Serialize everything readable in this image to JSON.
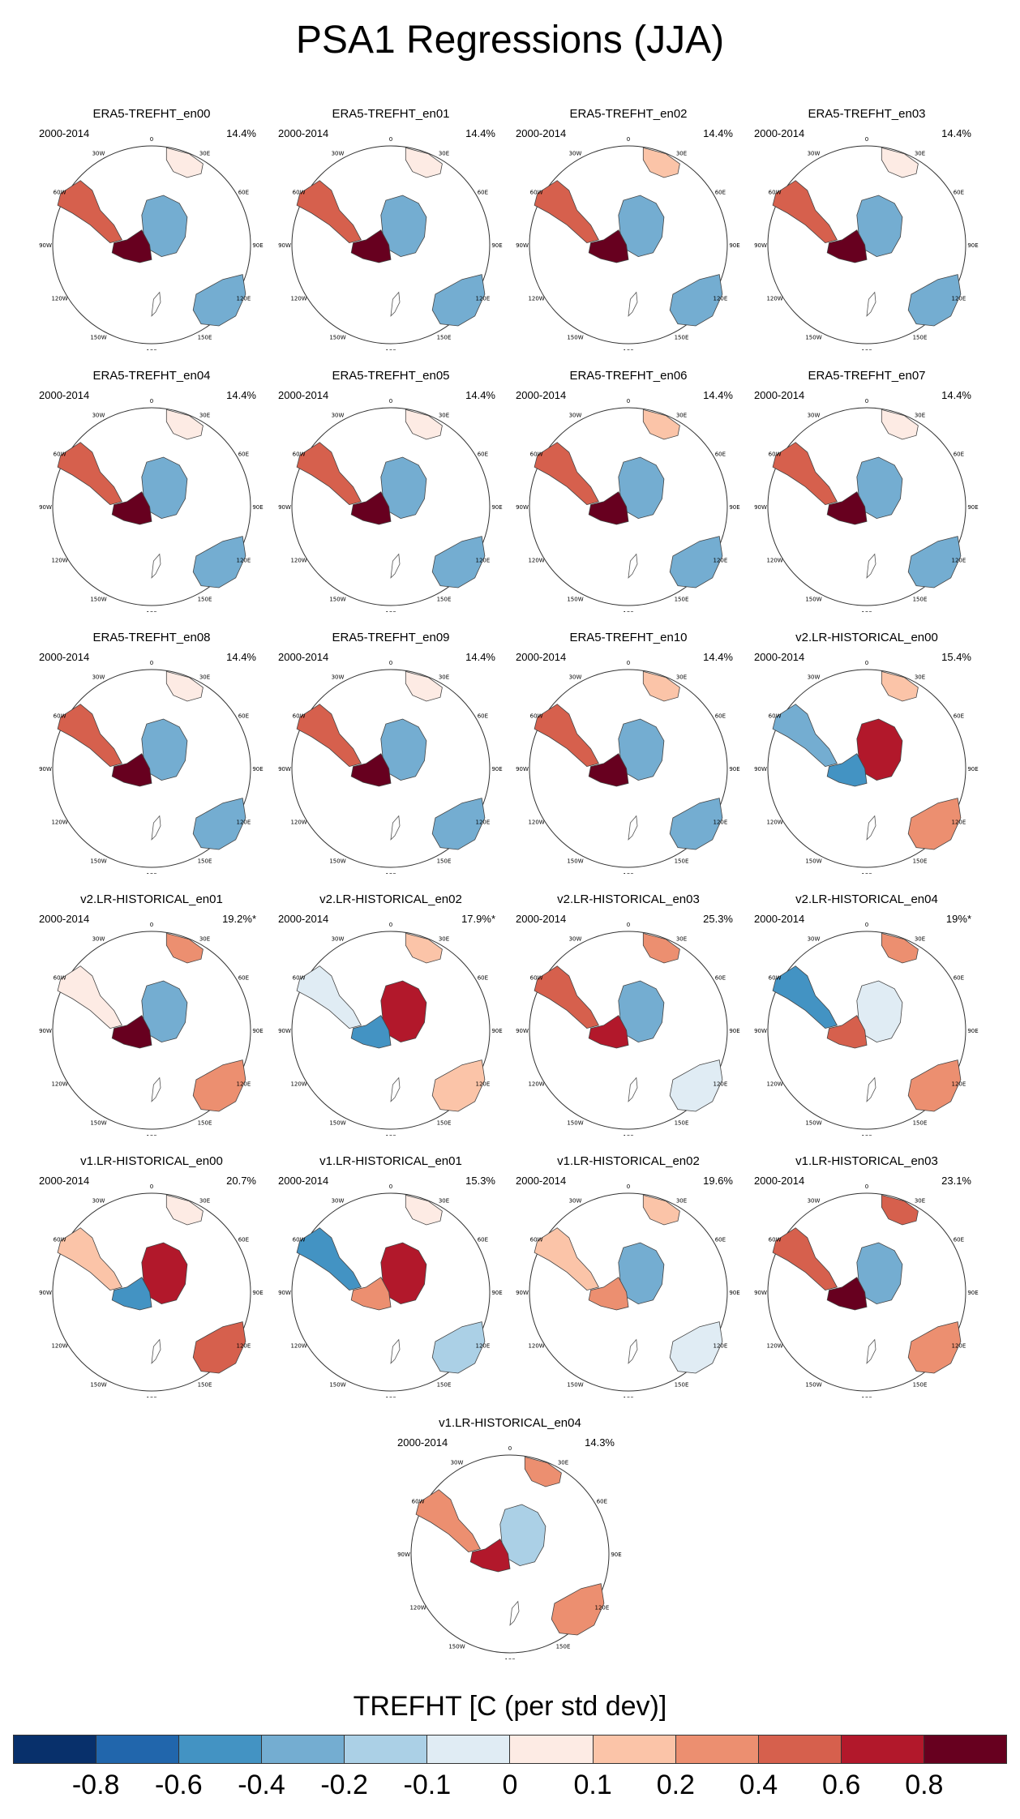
{
  "title": "PSA1 Regressions (JJA)",
  "period_label": "2000-2014",
  "lon_labels": [
    "0",
    "30E",
    "60E",
    "90E",
    "120E",
    "150E",
    "180",
    "150W",
    "120W",
    "90W",
    "60W",
    "30W"
  ],
  "colorbar": {
    "title": "TREFHT [C (per std dev)]",
    "colors": [
      "#08306b",
      "#2166ac",
      "#4393c3",
      "#74add1",
      "#abd0e6",
      "#e0ecf4",
      "#fdebe4",
      "#fbc4a8",
      "#ec8f70",
      "#d6604d",
      "#b2182b",
      "#67001f"
    ],
    "labels": [
      "-0.8",
      "-0.6",
      "-0.4",
      "-0.2",
      "-0.1",
      "0",
      "0.1",
      "0.2",
      "0.4",
      "0.6",
      "0.8"
    ]
  },
  "chart_data": {
    "type": "heatmap",
    "variable": "TREFHT",
    "units": "C (per std dev)",
    "season": "JJA",
    "panels": [
      {
        "title": "ERA5-TREFHT_en00",
        "period": "2000-2014",
        "pct": "14.4%",
        "pattern": {
          "peninsula": 0.55,
          "westAnt": 0.9,
          "eastAnt": -0.35,
          "australia": -0.3,
          "africa": 0.05
        }
      },
      {
        "title": "ERA5-TREFHT_en01",
        "period": "2000-2014",
        "pct": "14.4%",
        "pattern": {
          "peninsula": 0.45,
          "westAnt": 0.9,
          "eastAnt": -0.3,
          "australia": -0.25,
          "africa": 0.05
        }
      },
      {
        "title": "ERA5-TREFHT_en02",
        "period": "2000-2014",
        "pct": "14.4%",
        "pattern": {
          "peninsula": 0.5,
          "westAnt": 0.85,
          "eastAnt": -0.35,
          "australia": -0.3,
          "africa": 0.1
        }
      },
      {
        "title": "ERA5-TREFHT_en03",
        "period": "2000-2014",
        "pct": "14.4%",
        "pattern": {
          "peninsula": 0.45,
          "westAnt": 0.85,
          "eastAnt": -0.35,
          "australia": -0.3,
          "africa": 0.05
        }
      },
      {
        "title": "ERA5-TREFHT_en04",
        "period": "2000-2014",
        "pct": "14.4%",
        "pattern": {
          "peninsula": 0.5,
          "westAnt": 0.9,
          "eastAnt": -0.3,
          "australia": -0.3,
          "africa": 0.05
        }
      },
      {
        "title": "ERA5-TREFHT_en05",
        "period": "2000-2014",
        "pct": "14.4%",
        "pattern": {
          "peninsula": 0.45,
          "westAnt": 0.85,
          "eastAnt": -0.3,
          "australia": -0.3,
          "africa": 0.05
        }
      },
      {
        "title": "ERA5-TREFHT_en06",
        "period": "2000-2014",
        "pct": "14.4%",
        "pattern": {
          "peninsula": 0.5,
          "westAnt": 0.85,
          "eastAnt": -0.35,
          "australia": -0.3,
          "africa": 0.1
        }
      },
      {
        "title": "ERA5-TREFHT_en07",
        "period": "2000-2014",
        "pct": "14.4%",
        "pattern": {
          "peninsula": 0.45,
          "westAnt": 0.85,
          "eastAnt": -0.35,
          "australia": -0.3,
          "africa": 0.05
        }
      },
      {
        "title": "ERA5-TREFHT_en08",
        "period": "2000-2014",
        "pct": "14.4%",
        "pattern": {
          "peninsula": 0.5,
          "westAnt": 0.9,
          "eastAnt": -0.35,
          "australia": -0.3,
          "africa": 0.05
        }
      },
      {
        "title": "ERA5-TREFHT_en09",
        "period": "2000-2014",
        "pct": "14.4%",
        "pattern": {
          "peninsula": 0.45,
          "westAnt": 0.85,
          "eastAnt": -0.3,
          "australia": -0.3,
          "africa": 0.05
        }
      },
      {
        "title": "ERA5-TREFHT_en10",
        "period": "2000-2014",
        "pct": "14.4%",
        "pattern": {
          "peninsula": 0.5,
          "westAnt": 0.85,
          "eastAnt": -0.35,
          "australia": -0.3,
          "africa": 0.1
        }
      },
      {
        "title": "v2.LR-HISTORICAL_en00",
        "period": "2000-2014",
        "pct": "15.4%",
        "pattern": {
          "peninsula": -0.3,
          "westAnt": -0.6,
          "eastAnt": 0.7,
          "australia": 0.2,
          "africa": 0.1
        }
      },
      {
        "title": "v2.LR-HISTORICAL_en01",
        "period": "2000-2014",
        "pct": "19.2%*",
        "pattern": {
          "peninsula": 0.05,
          "westAnt": 0.85,
          "eastAnt": -0.35,
          "australia": 0.3,
          "africa": 0.2
        }
      },
      {
        "title": "v2.LR-HISTORICAL_en02",
        "period": "2000-2014",
        "pct": "17.9%*",
        "pattern": {
          "peninsula": -0.1,
          "westAnt": -0.6,
          "eastAnt": 0.7,
          "australia": 0.15,
          "africa": 0.15
        }
      },
      {
        "title": "v2.LR-HISTORICAL_en03",
        "period": "2000-2014",
        "pct": "25.3%",
        "pattern": {
          "peninsula": 0.55,
          "westAnt": 0.6,
          "eastAnt": -0.3,
          "australia": -0.05,
          "africa": 0.3
        }
      },
      {
        "title": "v2.LR-HISTORICAL_en04",
        "period": "2000-2014",
        "pct": "19%*",
        "pattern": {
          "peninsula": -0.5,
          "westAnt": 0.5,
          "eastAnt": -0.1,
          "australia": 0.2,
          "africa": 0.3
        }
      },
      {
        "title": "v1.LR-HISTORICAL_en00",
        "period": "2000-2014",
        "pct": "20.7%",
        "pattern": {
          "peninsula": 0.15,
          "westAnt": -0.6,
          "eastAnt": 0.7,
          "australia": 0.45,
          "africa": 0.05
        }
      },
      {
        "title": "v1.LR-HISTORICAL_en01",
        "period": "2000-2014",
        "pct": "15.3%",
        "pattern": {
          "peninsula": -0.55,
          "westAnt": 0.3,
          "eastAnt": 0.7,
          "australia": -0.2,
          "africa": 0.05
        }
      },
      {
        "title": "v1.LR-HISTORICAL_en02",
        "period": "2000-2014",
        "pct": "19.6%",
        "pattern": {
          "peninsula": 0.15,
          "westAnt": 0.35,
          "eastAnt": -0.25,
          "australia": -0.05,
          "africa": 0.1
        }
      },
      {
        "title": "v1.LR-HISTORICAL_en03",
        "period": "2000-2014",
        "pct": "23.1%",
        "pattern": {
          "peninsula": 0.4,
          "westAnt": 0.85,
          "eastAnt": -0.35,
          "australia": 0.2,
          "africa": 0.4
        }
      },
      {
        "title": "v1.LR-HISTORICAL_en04",
        "period": "2000-2014",
        "pct": "14.3%",
        "pattern": {
          "peninsula": 0.25,
          "westAnt": 0.7,
          "eastAnt": -0.15,
          "australia": 0.2,
          "africa": 0.3
        }
      }
    ]
  }
}
